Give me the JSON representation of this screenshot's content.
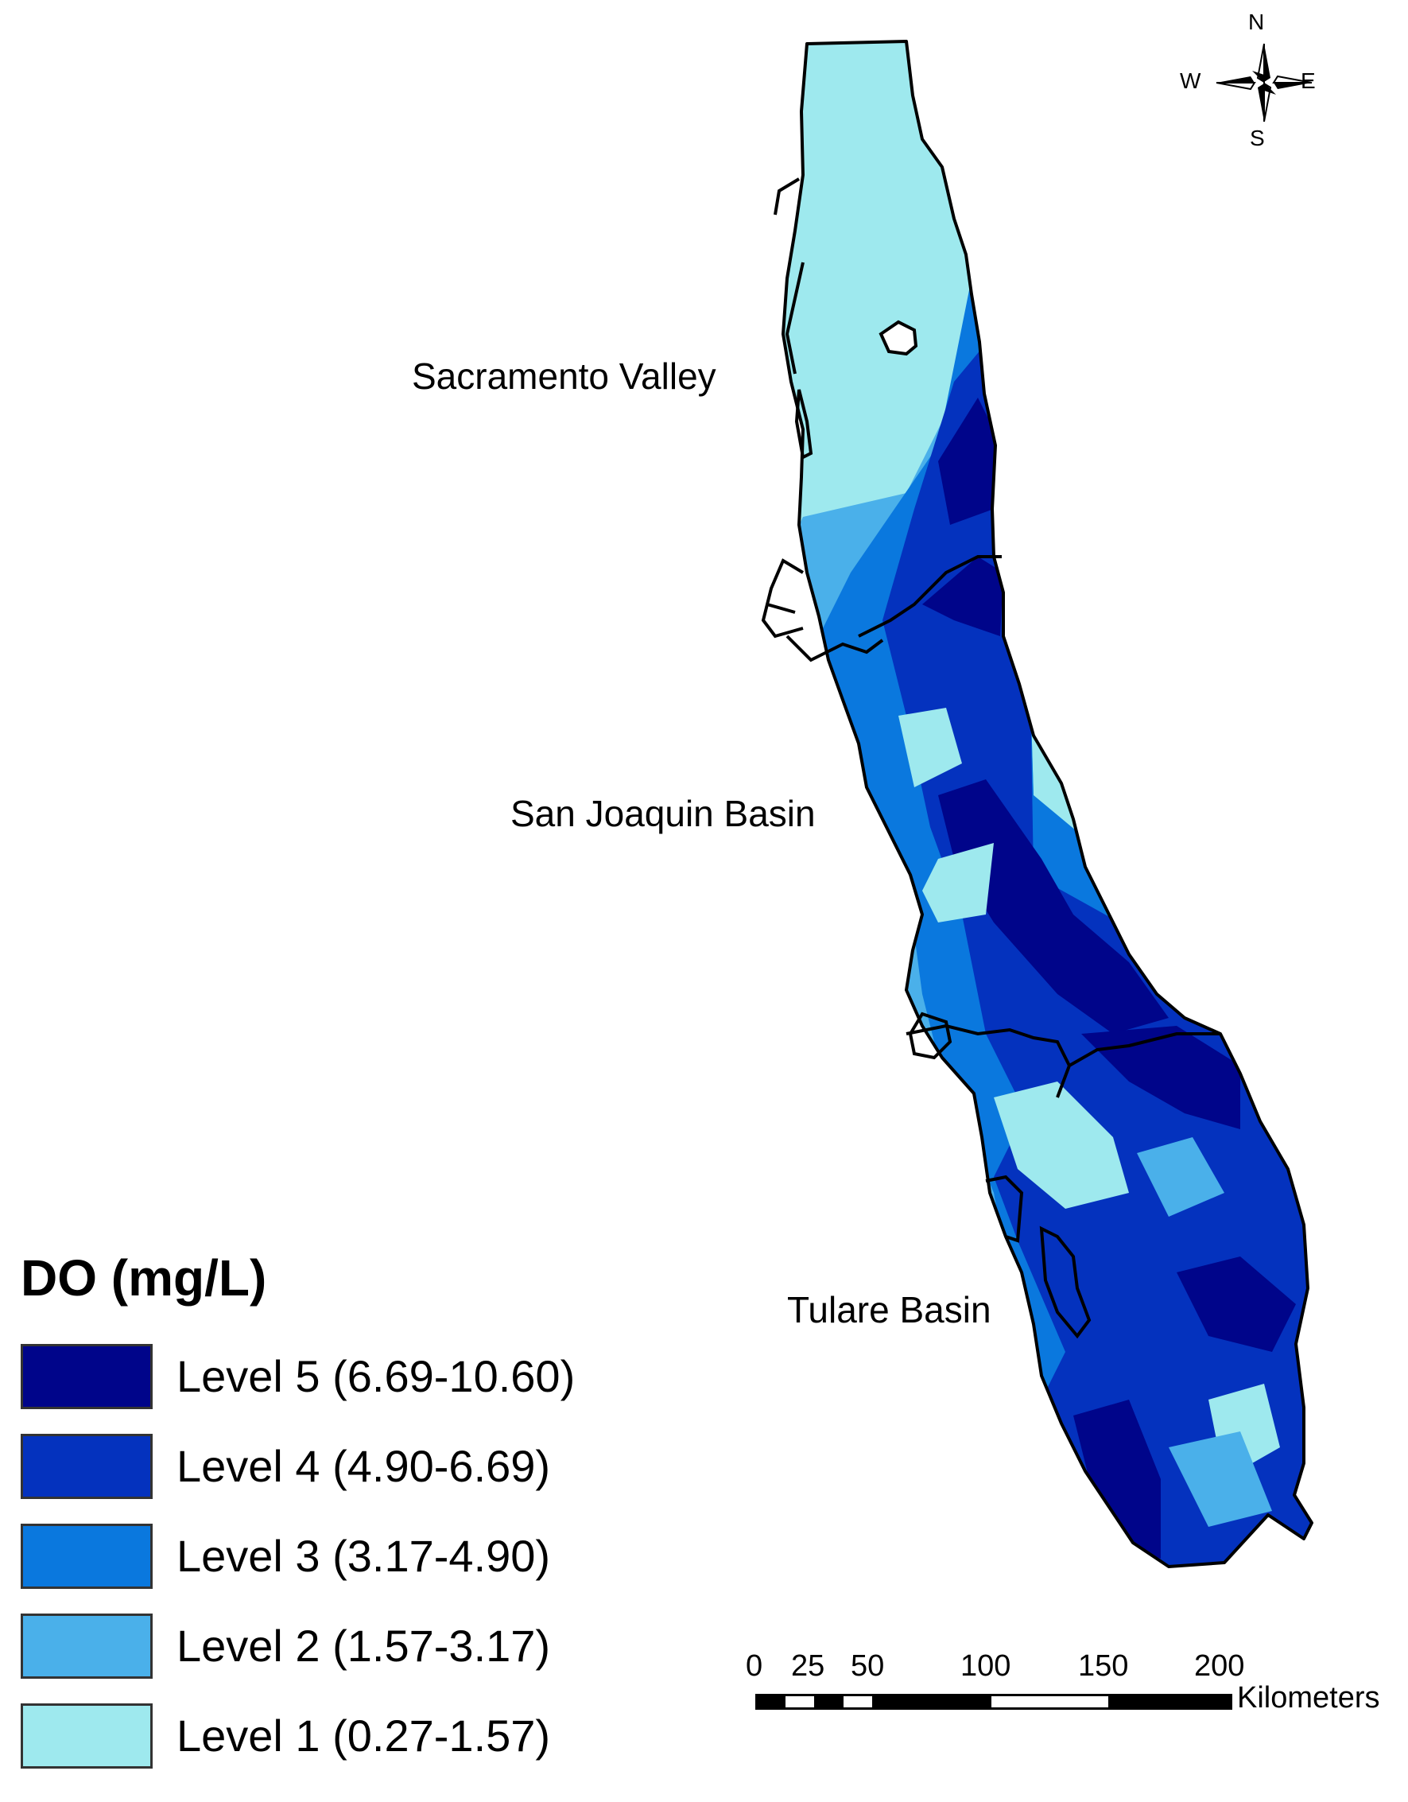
{
  "legend": {
    "title": "DO (mg/L)",
    "items": [
      {
        "label": "Level 5 (6.69-10.60)",
        "color": "#00058a"
      },
      {
        "label": "Level 4 (4.90-6.69)",
        "color": "#0432be"
      },
      {
        "label": "Level 3 (3.17-4.90)",
        "color": "#0a78de"
      },
      {
        "label": "Level 2 (1.57-3.17)",
        "color": "#4ab0ea"
      },
      {
        "label": "Level 1 (0.27-1.57)",
        "color": "#9ee9ee"
      }
    ]
  },
  "regions": {
    "sacramento": "Sacramento Valley",
    "san_joaquin": "San Joaquin Basin",
    "tulare": "Tulare Basin"
  },
  "compass": {
    "n": "N",
    "s": "S",
    "e": "E",
    "w": "W"
  },
  "scale_bar": {
    "ticks": [
      "0",
      "25",
      "50",
      "100",
      "150",
      "200"
    ],
    "unit": "Kilometers"
  }
}
